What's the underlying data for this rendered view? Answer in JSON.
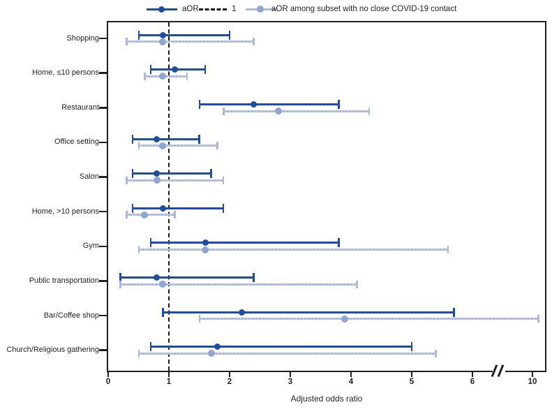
{
  "figure": {
    "xlabel": "Adjusted odds ratio",
    "legend": {
      "aor_label": "aOR",
      "ref_label": "1",
      "subset_label": "aOR among subset with no close COVID-19 contact"
    },
    "colors": {
      "aor": "#1b4da0",
      "subset_line": "#a9b8dc",
      "subset_marker": "#8fa6d2",
      "reference_dash": "#1a1a1a",
      "frame": "#231f20",
      "text": "#231f20"
    }
  },
  "chart_data": {
    "type": "forest",
    "title": "",
    "xlabel": "Adjusted odds ratio",
    "x_ticks": [
      0,
      1,
      2,
      3,
      4,
      5,
      6,
      10
    ],
    "x_axis_break": {
      "after": 6,
      "before": 10
    },
    "reference_line_x": 1,
    "xlim_display": [
      0,
      10.3
    ],
    "grid": false,
    "legend_position": "top-center",
    "categories": [
      "Shopping",
      "Home, ≤10 persons",
      "Restaurant",
      "Office setting",
      "Salon",
      "Home, >10 persons",
      "Gym",
      "Public transportation",
      "Bar/Coffee shop",
      "Church/Religious gathering"
    ],
    "series": [
      {
        "name": "aOR",
        "color": "#1b4da0",
        "marker_color": "#1b4da0",
        "points": [
          {
            "est": 0.9,
            "lo": 0.5,
            "hi": 2.0
          },
          {
            "est": 1.1,
            "lo": 0.7,
            "hi": 1.6
          },
          {
            "est": 2.4,
            "lo": 1.5,
            "hi": 3.8
          },
          {
            "est": 0.8,
            "lo": 0.4,
            "hi": 1.5
          },
          {
            "est": 0.8,
            "lo": 0.4,
            "hi": 1.7
          },
          {
            "est": 0.9,
            "lo": 0.4,
            "hi": 1.9
          },
          {
            "est": 1.6,
            "lo": 0.7,
            "hi": 3.8
          },
          {
            "est": 0.8,
            "lo": 0.2,
            "hi": 2.4
          },
          {
            "est": 2.2,
            "lo": 0.9,
            "hi": 5.7
          },
          {
            "est": 1.8,
            "lo": 0.7,
            "hi": 5.0
          }
        ]
      },
      {
        "name": "aOR among subset with no close COVID-19 contact",
        "color": "#a9b8dc",
        "marker_color": "#8fa6d2",
        "points": [
          {
            "est": 0.9,
            "lo": 0.3,
            "hi": 2.4
          },
          {
            "est": 0.9,
            "lo": 0.6,
            "hi": 1.3
          },
          {
            "est": 2.8,
            "lo": 1.9,
            "hi": 4.3
          },
          {
            "est": 0.9,
            "lo": 0.5,
            "hi": 1.8
          },
          {
            "est": 0.8,
            "lo": 0.3,
            "hi": 1.9
          },
          {
            "est": 0.6,
            "lo": 0.3,
            "hi": 1.1
          },
          {
            "est": 1.6,
            "lo": 0.5,
            "hi": 5.6
          },
          {
            "est": 0.9,
            "lo": 0.2,
            "hi": 4.1
          },
          {
            "est": 3.9,
            "lo": 1.5,
            "hi": 10.1
          },
          {
            "est": 1.7,
            "lo": 0.5,
            "hi": 5.4
          }
        ]
      }
    ]
  }
}
